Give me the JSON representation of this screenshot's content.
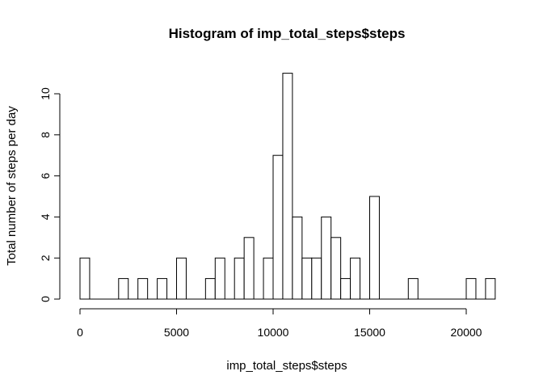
{
  "chart_data": {
    "type": "bar",
    "title": "Histogram of imp_total_steps$steps",
    "xlabel": "imp_total_steps$steps",
    "ylabel": "Total number of steps per day",
    "bin_width": 500,
    "bin_start": 0,
    "values": [
      2,
      0,
      0,
      0,
      1,
      0,
      1,
      0,
      1,
      0,
      2,
      0,
      0,
      1,
      2,
      0,
      2,
      3,
      0,
      2,
      7,
      11,
      4,
      2,
      2,
      4,
      3,
      1,
      2,
      0,
      5,
      0,
      0,
      0,
      1,
      0,
      0,
      0,
      0,
      0,
      1,
      0,
      1
    ],
    "xlim": [
      0,
      21500
    ],
    "ylim": [
      0,
      11
    ],
    "x_ticks": [
      0,
      5000,
      10000,
      15000,
      20000
    ],
    "y_ticks": [
      0,
      2,
      4,
      6,
      8,
      10
    ],
    "x_tick_labels": [
      "0",
      "5000",
      "10000",
      "15000",
      "20000"
    ],
    "y_tick_labels": [
      "0",
      "2",
      "4",
      "6",
      "8",
      "10"
    ]
  }
}
